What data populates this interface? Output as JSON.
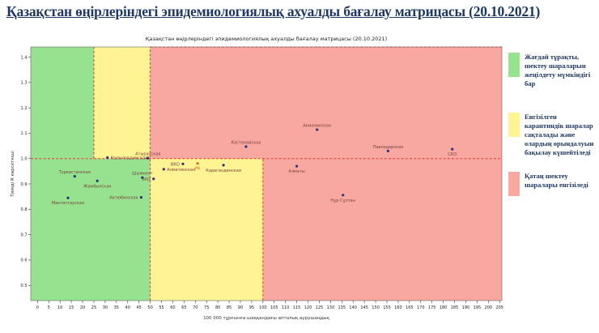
{
  "header": {
    "title": "Қазақстан өңірлеріндегі эпидемиологиялық ахуалды бағалау матрицасы  (20.10.2021)"
  },
  "chart_data": {
    "type": "scatter",
    "title": "Қазақстан өңірлеріндегі эпидемиологиялық ахуалды бағалау матрицасы  (20.10.2021)",
    "xlabel": "100 000 тұрғынға шаққандағы апталық аурушаңдық",
    "ylabel": "Тиімді R көрсеткіші",
    "xlim": [
      -3,
      206
    ],
    "ylim": [
      0.44,
      1.44
    ],
    "x_ticks": [
      0,
      5,
      10,
      15,
      20,
      25,
      30,
      35,
      40,
      45,
      50,
      55,
      60,
      65,
      70,
      75,
      80,
      85,
      90,
      95,
      100,
      105,
      110,
      115,
      120,
      125,
      130,
      135,
      140,
      145,
      150,
      155,
      160,
      165,
      170,
      175,
      180,
      185,
      190,
      195,
      200,
      205
    ],
    "y_ticks": [
      "0.5",
      "0.6",
      "0.7",
      "0.8",
      "0.9",
      "1.0",
      "1.1",
      "1.2",
      "1.3",
      "1.4"
    ],
    "grid": false,
    "zone_colors": {
      "green": "#96E28F",
      "yellow": "#FFF394",
      "red": "#F8A8A0"
    },
    "zones": [
      {
        "x0": -3,
        "x1": 25,
        "y0": 1.0,
        "y1": 1.44,
        "color": "green"
      },
      {
        "x0": 25,
        "x1": 50,
        "y0": 1.0,
        "y1": 1.44,
        "color": "yellow"
      },
      {
        "x0": 50,
        "x1": 206,
        "y0": 1.0,
        "y1": 1.44,
        "color": "red"
      },
      {
        "x0": -3,
        "x1": 50,
        "y0": 0.44,
        "y1": 1.0,
        "color": "green"
      },
      {
        "x0": 50,
        "x1": 100,
        "y0": 0.44,
        "y1": 1.0,
        "color": "yellow"
      },
      {
        "x0": 100,
        "x1": 206,
        "y0": 0.44,
        "y1": 1.0,
        "color": "red"
      }
    ],
    "dash_color": "#E8392E",
    "dashed_lines": [
      {
        "x1": -3,
        "y1": 1.0,
        "x2": 206,
        "y2": 1.0
      },
      {
        "x1": 25,
        "y1": 1.0,
        "x2": 25,
        "y2": 1.44
      },
      {
        "x1": 50,
        "y1": 0.44,
        "x2": 50,
        "y2": 1.44
      },
      {
        "x1": 100,
        "y1": 0.44,
        "x2": 100,
        "y2": 1.0
      },
      {
        "x1": 50,
        "y1": 1.44,
        "x2": 206,
        "y2": 1.44
      }
    ],
    "point_color": "#2F2F7F",
    "label_color": "#7B4141",
    "points": [
      {
        "label": "Туркестанская",
        "x": 16.5,
        "y": 0.93,
        "label_pos": "above"
      },
      {
        "label": "Жамбылская",
        "x": 26.5,
        "y": 0.912,
        "label_pos": "below"
      },
      {
        "label": "Мангистауская",
        "x": 13.5,
        "y": 0.845,
        "label_pos": "below"
      },
      {
        "label": "Актюбинская",
        "x": 46,
        "y": 0.847,
        "label_pos": "left"
      },
      {
        "label": "Шымкент",
        "x": 46.5,
        "y": 0.925,
        "label_pos": "above"
      },
      {
        "label": "ЗКО",
        "x": 51.5,
        "y": 0.92,
        "label_pos": "left"
      },
      {
        "label": "Кызылординская",
        "x": 31,
        "y": 1.004,
        "label_pos": "right"
      },
      {
        "label": "Атырауская",
        "x": 49,
        "y": 1.002,
        "label_pos": "above"
      },
      {
        "label": "Алматинская",
        "x": 56,
        "y": 0.958,
        "label_pos": "right"
      },
      {
        "label": "ВКО",
        "x": 64.5,
        "y": 0.979,
        "label_pos": "left"
      },
      {
        "label": "РК",
        "x": 71,
        "y": 0.981,
        "label_pos": "below",
        "color": "#E2601F"
      },
      {
        "label": "Карагандинская",
        "x": 82.5,
        "y": 0.974,
        "label_pos": "below"
      },
      {
        "label": "Костанайская",
        "x": 92.5,
        "y": 1.047,
        "label_pos": "above"
      },
      {
        "label": "Акмолинская",
        "x": 124,
        "y": 1.114,
        "label_pos": "above"
      },
      {
        "label": "Павлодарская",
        "x": 155.5,
        "y": 1.03,
        "label_pos": "above"
      },
      {
        "label": "СКО",
        "x": 184,
        "y": 1.037,
        "label_pos": "below"
      },
      {
        "label": "Алматы",
        "x": 115,
        "y": 0.97,
        "label_pos": "below"
      },
      {
        "label": "Нұр-Сұлтан",
        "x": 135.5,
        "y": 0.856,
        "label_pos": "below"
      }
    ]
  },
  "legend": {
    "items": [
      {
        "color": "#96E28F",
        "text": "Жағдай тұрақты, шектеу шараларын жеңілдету мүмкіндігі бар"
      },
      {
        "color": "#FFF394",
        "text": "Енгізілген карантиндік шаралар сақталады және олардың орындалуын бақылау күшейтіледі"
      },
      {
        "color": "#F8A8A0",
        "text": "Қатаң шектеу шаралары енгізіледі"
      }
    ]
  }
}
